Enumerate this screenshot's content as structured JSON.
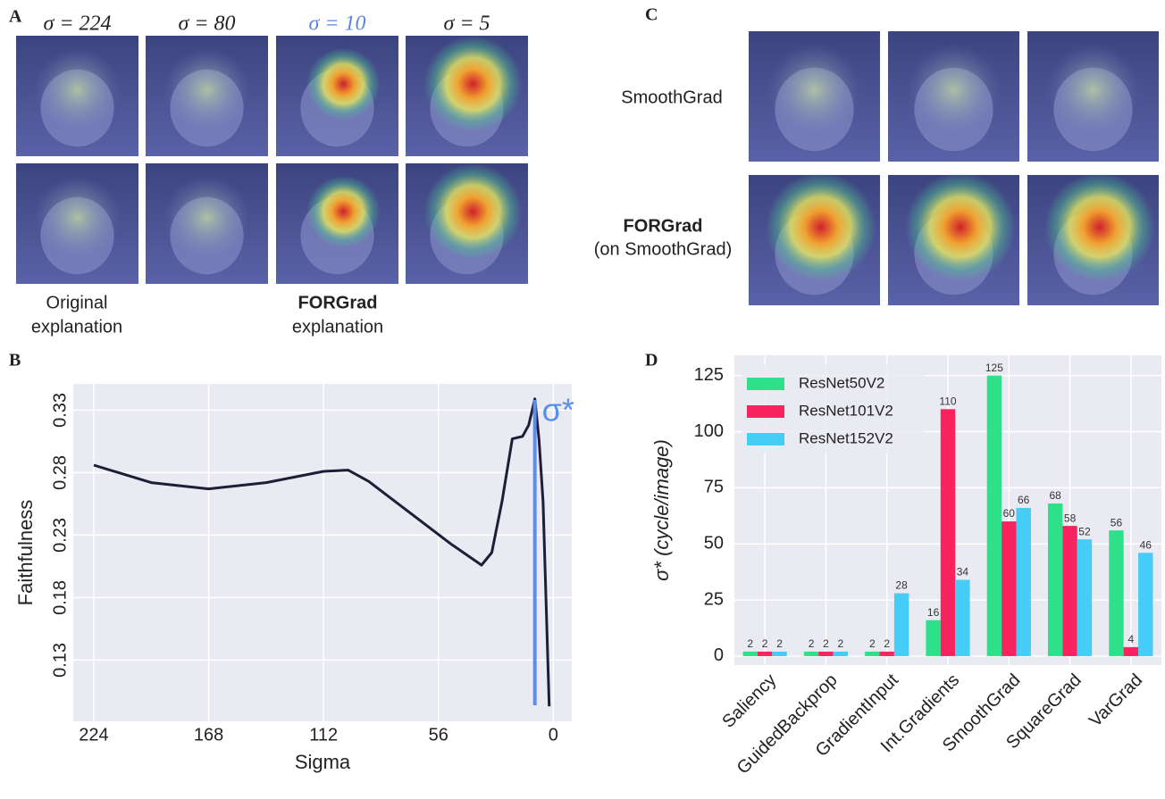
{
  "panel_a": {
    "label": "A",
    "sigma_labels": [
      "σ = 224",
      "σ = 80",
      "σ = 10",
      "σ = 5"
    ],
    "caption_left": [
      "Original",
      "explanation"
    ],
    "caption_right": [
      "FORGrad",
      "explanation"
    ]
  },
  "panel_c": {
    "label": "C",
    "row_labels": [
      [
        "SmoothGrad"
      ],
      [
        "FORGrad",
        "(on SmoothGrad)"
      ]
    ]
  },
  "chart_data": [
    {
      "panel_label": "B",
      "type": "line",
      "x_label": "Sigma",
      "y_label": "Faithfulness",
      "x": [
        224,
        196,
        168,
        140,
        112,
        100,
        90,
        70,
        50,
        35,
        30,
        25,
        20,
        15,
        12,
        9,
        7,
        5,
        2
      ],
      "values": [
        0.286,
        0.272,
        0.267,
        0.272,
        0.281,
        0.282,
        0.273,
        0.248,
        0.223,
        0.206,
        0.216,
        0.257,
        0.307,
        0.309,
        0.318,
        0.339,
        0.307,
        0.257,
        0.093
      ],
      "color": "#1e1e38",
      "xlim": [
        234,
        -9
      ],
      "xticks": [
        224,
        168,
        112,
        56,
        0
      ],
      "ylim": [
        0.081,
        0.351
      ],
      "yticks": [
        0.13,
        0.18,
        0.23,
        0.28,
        0.33
      ],
      "grid": true,
      "marker": {
        "x": 9,
        "label": "σ*",
        "color": "#5b8def"
      }
    },
    {
      "panel_label": "D",
      "type": "bar",
      "y_label": "σ* (cycle/image)",
      "categories": [
        "Saliency",
        "GuidedBackprop",
        "GradientInput",
        "Int.Gradients",
        "SmoothGrad",
        "SquareGrad",
        "VarGrad"
      ],
      "series": [
        {
          "name": "ResNet50V2",
          "color": "#2ee08a",
          "values": [
            2,
            2,
            2,
            16,
            125,
            68,
            56
          ]
        },
        {
          "name": "ResNet101V2",
          "color": "#f7245f",
          "values": [
            2,
            2,
            2,
            110,
            60,
            58,
            4
          ]
        },
        {
          "name": "ResNet152V2",
          "color": "#45ccf7",
          "values": [
            2,
            2,
            28,
            34,
            66,
            52,
            46
          ]
        }
      ],
      "ylim": [
        -4,
        134
      ],
      "yticks": [
        0,
        25,
        50,
        75,
        100,
        125
      ],
      "grid": true,
      "legend": "upper-left"
    }
  ]
}
